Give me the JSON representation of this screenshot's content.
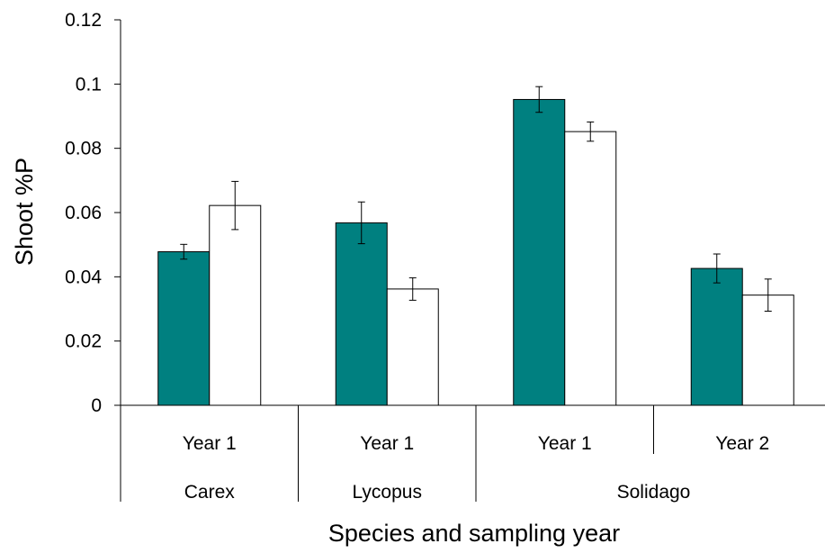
{
  "chart_data": {
    "type": "bar",
    "title": "",
    "xlabel": "Species and sampling year",
    "ylabel": "Shoot %P",
    "ylim": [
      0,
      0.12
    ],
    "yticks": [
      "0",
      "0.02",
      "0.04",
      "0.06",
      "0.08",
      "0.1",
      "0.12"
    ],
    "grid": false,
    "legend": "none",
    "categories": [
      "Year 1",
      "Year 1",
      "Year 1",
      "Year 2"
    ],
    "groups": [
      "Carex",
      "Lycopus",
      "Solidago"
    ],
    "group_spans": [
      1,
      1,
      2
    ],
    "series": [
      {
        "color": "#008080",
        "values": [
          0.0478,
          0.0568,
          0.0952,
          0.0426
        ],
        "errors": [
          0.0023,
          0.0065,
          0.004,
          0.0045
        ]
      },
      {
        "color": "#ffffff",
        "values": [
          0.0622,
          0.0362,
          0.0852,
          0.0343
        ],
        "errors": [
          0.0075,
          0.0035,
          0.003,
          0.005
        ]
      }
    ]
  }
}
